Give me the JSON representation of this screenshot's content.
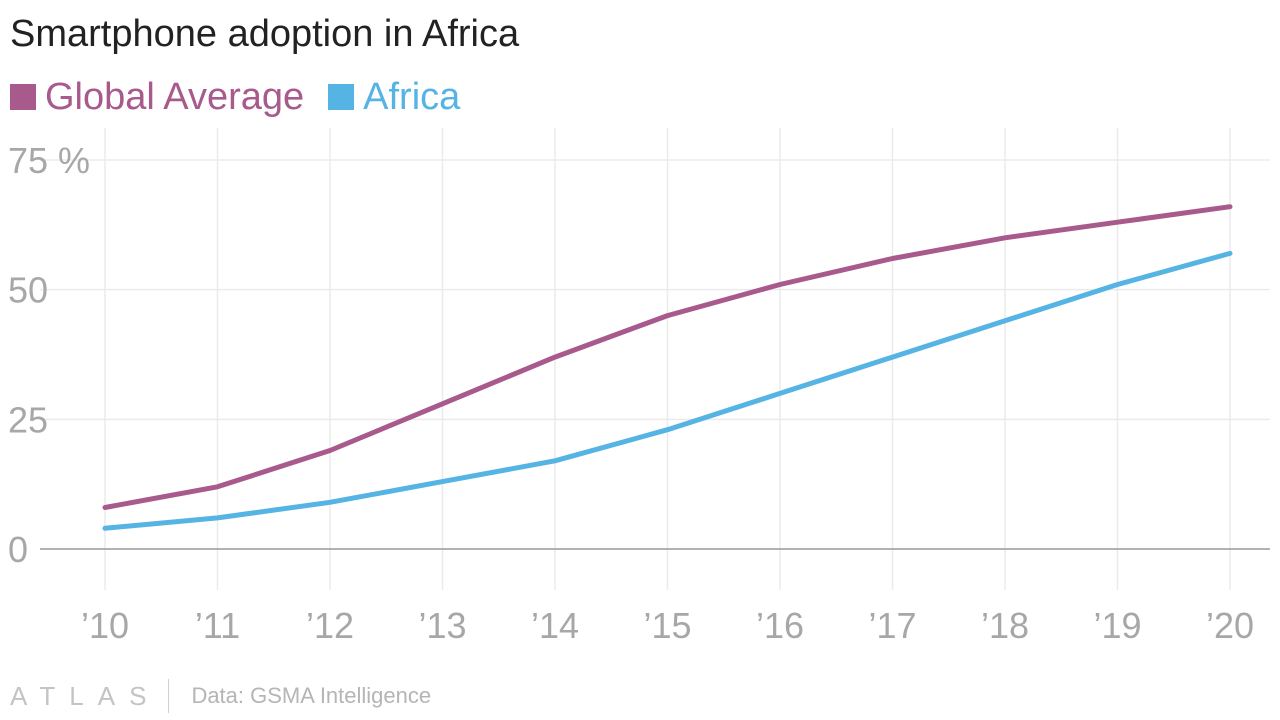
{
  "title": "Smartphone adoption in Africa",
  "footer": {
    "logo": "ATLAS",
    "source": "Data: GSMA Intelligence"
  },
  "colors": {
    "global": "#a85a8c",
    "africa": "#55b4e4",
    "grid": "#ebebeb",
    "axis": "#999999",
    "tick_text": "#a7a7a7"
  },
  "chart_data": {
    "type": "line",
    "title": "Smartphone adoption in Africa",
    "xlabel": "",
    "ylabel": "",
    "x": [
      "’10",
      "’11",
      "’12",
      "’13",
      "’14",
      "’15",
      "’16",
      "’17",
      "’18",
      "’19",
      "’20"
    ],
    "y_ticks": [
      "0",
      "25",
      "50",
      "75 %"
    ],
    "ylim": [
      0,
      75
    ],
    "grid": true,
    "legend_position": "top-left",
    "series": [
      {
        "name": "Global Average",
        "color": "#a85a8c",
        "values": [
          8,
          12,
          19,
          28,
          37,
          45,
          51,
          56,
          60,
          63,
          66
        ]
      },
      {
        "name": "Africa",
        "color": "#55b4e4",
        "values": [
          4,
          6,
          9,
          13,
          17,
          23,
          30,
          37,
          44,
          51,
          57
        ]
      }
    ]
  }
}
